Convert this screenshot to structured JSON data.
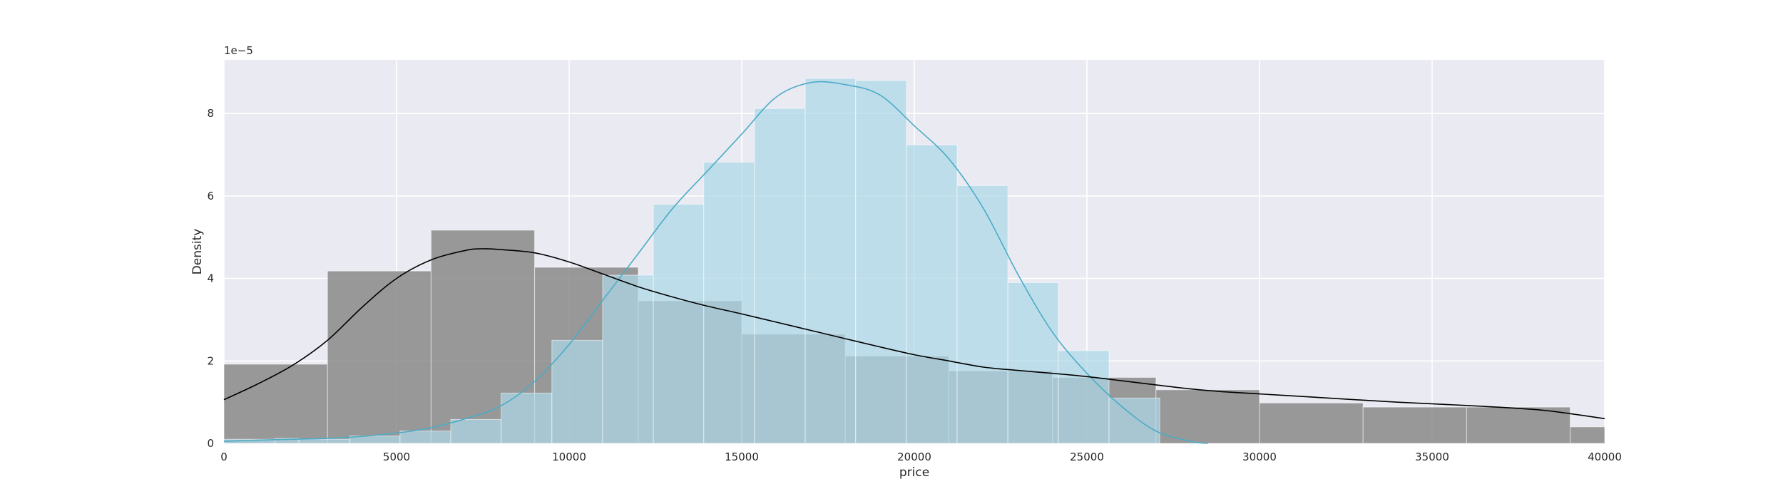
{
  "chart_data": {
    "type": "histogram",
    "title": "",
    "xlabel": "price",
    "ylabel": "Density",
    "y_offset_label": "1e−5",
    "xlim": [
      0,
      40000
    ],
    "ylim": [
      0,
      9.3
    ],
    "y_scale_note": "values in units of 1e-5",
    "x_ticks": [
      0,
      5000,
      10000,
      15000,
      20000,
      25000,
      30000,
      35000,
      40000
    ],
    "y_ticks": [
      0,
      2,
      4,
      6,
      8
    ],
    "grid": true,
    "legend": "none",
    "series": [
      {
        "color": "#ADD8E6",
        "kde_color": "#4BACC6",
        "bins": [
          {
            "x0": 0,
            "x1": 1480,
            "value": 0.1
          },
          {
            "x0": 1480,
            "x1": 2170,
            "value": 0.12
          },
          {
            "x0": 2170,
            "x1": 3640,
            "value": 0.1
          },
          {
            "x0": 3640,
            "x1": 5100,
            "value": 0.18
          },
          {
            "x0": 5100,
            "x1": 6570,
            "value": 0.3
          },
          {
            "x0": 6570,
            "x1": 8030,
            "value": 0.58
          },
          {
            "x0": 8030,
            "x1": 9500,
            "value": 1.22
          },
          {
            "x0": 9500,
            "x1": 10970,
            "value": 2.5
          },
          {
            "x0": 10970,
            "x1": 12440,
            "value": 4.08
          },
          {
            "x0": 12440,
            "x1": 13900,
            "value": 5.8
          },
          {
            "x0": 13900,
            "x1": 15370,
            "value": 6.82
          },
          {
            "x0": 15370,
            "x1": 16840,
            "value": 8.12
          },
          {
            "x0": 16840,
            "x1": 18300,
            "value": 8.85
          },
          {
            "x0": 18300,
            "x1": 19770,
            "value": 8.8
          },
          {
            "x0": 19770,
            "x1": 21240,
            "value": 7.24
          },
          {
            "x0": 21240,
            "x1": 22710,
            "value": 6.25
          },
          {
            "x0": 22710,
            "x1": 24170,
            "value": 3.9
          },
          {
            "x0": 24170,
            "x1": 25640,
            "value": 2.25
          },
          {
            "x0": 25640,
            "x1": 27110,
            "value": 1.1
          }
        ],
        "kde": {
          "x": [
            0,
            1000,
            2000,
            3000,
            4000,
            5000,
            6000,
            7000,
            8000,
            9000,
            10000,
            11000,
            12000,
            13000,
            14000,
            15000,
            16000,
            17000,
            18000,
            19000,
            20000,
            21000,
            22000,
            23000,
            24000,
            25000,
            26000,
            27000,
            28000,
            28500
          ],
          "y": [
            0.05,
            0.08,
            0.1,
            0.12,
            0.17,
            0.25,
            0.38,
            0.6,
            0.9,
            1.5,
            2.4,
            3.5,
            4.6,
            5.7,
            6.6,
            7.5,
            8.4,
            8.75,
            8.7,
            8.45,
            7.7,
            6.9,
            5.7,
            4.1,
            2.7,
            1.7,
            0.9,
            0.3,
            0.05,
            0.0
          ]
        }
      },
      {
        "color": "#808080",
        "kde_color": "#000000",
        "bins": [
          {
            "x0": 0,
            "x1": 3000,
            "value": 1.92
          },
          {
            "x0": 3000,
            "x1": 6000,
            "value": 4.18
          },
          {
            "x0": 6000,
            "x1": 9000,
            "value": 5.17
          },
          {
            "x0": 9000,
            "x1": 12000,
            "value": 4.27
          },
          {
            "x0": 12000,
            "x1": 15000,
            "value": 3.46
          },
          {
            "x0": 15000,
            "x1": 18000,
            "value": 2.65
          },
          {
            "x0": 18000,
            "x1": 21000,
            "value": 2.12
          },
          {
            "x0": 21000,
            "x1": 24000,
            "value": 1.76
          },
          {
            "x0": 24000,
            "x1": 27000,
            "value": 1.6
          },
          {
            "x0": 27000,
            "x1": 30000,
            "value": 1.3
          },
          {
            "x0": 30000,
            "x1": 33000,
            "value": 0.98
          },
          {
            "x0": 33000,
            "x1": 36000,
            "value": 0.88
          },
          {
            "x0": 36000,
            "x1": 39000,
            "value": 0.88
          },
          {
            "x0": 39000,
            "x1": 40000,
            "value": 0.4
          }
        ],
        "kde": {
          "x": [
            0,
            1000,
            2000,
            3000,
            4000,
            5000,
            6000,
            7000,
            7500,
            8000,
            9000,
            10000,
            11000,
            12000,
            13000,
            14000,
            15000,
            16000,
            17000,
            18000,
            19000,
            20000,
            21000,
            22000,
            23000,
            24000,
            25000,
            26000,
            27000,
            28000,
            29000,
            30000,
            32000,
            34000,
            36000,
            38000,
            39000,
            40000
          ],
          "y": [
            1.06,
            1.45,
            1.9,
            2.5,
            3.3,
            4.0,
            4.45,
            4.68,
            4.72,
            4.7,
            4.62,
            4.4,
            4.1,
            3.8,
            3.55,
            3.33,
            3.14,
            2.94,
            2.74,
            2.54,
            2.34,
            2.15,
            2.0,
            1.85,
            1.77,
            1.7,
            1.62,
            1.52,
            1.42,
            1.32,
            1.25,
            1.2,
            1.1,
            1.0,
            0.92,
            0.82,
            0.72,
            0.6
          ]
        }
      }
    ]
  }
}
